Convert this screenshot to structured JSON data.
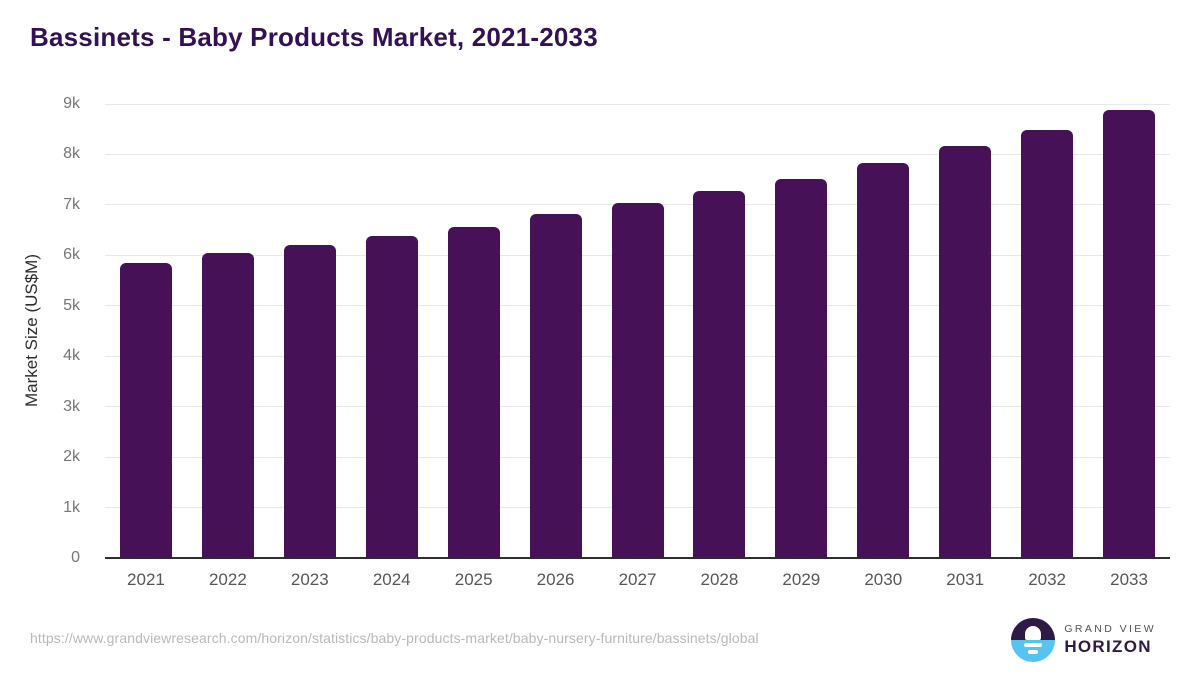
{
  "header": {
    "title": "Bassinets - Baby Products Market, 2021-2033"
  },
  "chart_data": {
    "type": "bar",
    "title": "Bassinets - Baby Products Market, 2021-2033",
    "categories": [
      "2021",
      "2022",
      "2023",
      "2024",
      "2025",
      "2026",
      "2027",
      "2028",
      "2029",
      "2030",
      "2031",
      "2032",
      "2033"
    ],
    "values": [
      5850,
      6050,
      6200,
      6390,
      6570,
      6810,
      7030,
      7270,
      7520,
      7840,
      8160,
      8490,
      8880
    ],
    "xlabel": "",
    "ylabel": "Market Size (US$M)",
    "ylim": [
      0,
      9000
    ],
    "ytick_interval": 1000,
    "ytick_labels": [
      "0",
      "1k",
      "2k",
      "3k",
      "4k",
      "5k",
      "6k",
      "7k",
      "8k",
      "9k"
    ],
    "grid": true,
    "legend": "none",
    "bar_color": "#471157"
  },
  "colors": {
    "title": "#321252",
    "bar": "#471157",
    "gridline": "#e8e8e8",
    "axis_line": "#2f2f2f",
    "tick_label": "#767679",
    "x_label": "#565759",
    "url_text": "#b9b9b9",
    "logo_purple": "#2e1a47",
    "logo_blue": "#56c3f0"
  },
  "footer": {
    "source_url": "https://www.grandviewresearch.com/horizon/statistics/baby-products-market/baby-nursery-furniture/bassinets/global",
    "logo": {
      "line1": "GRAND VIEW",
      "line2": "HORIZON",
      "mark": "sun-over-horizon-icon"
    }
  }
}
